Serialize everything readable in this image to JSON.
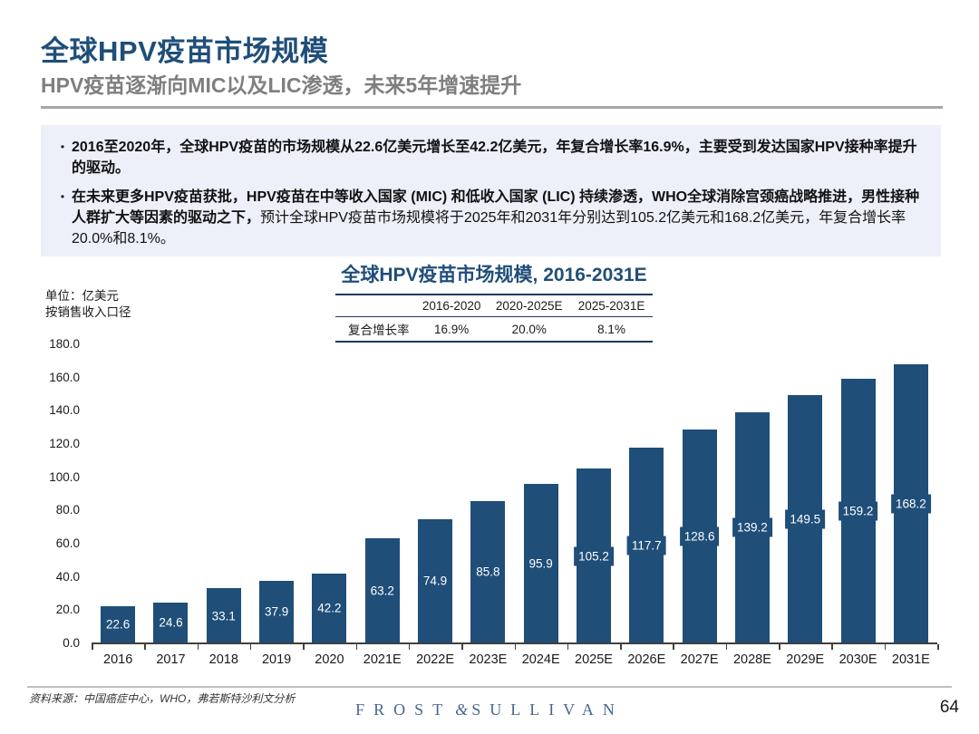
{
  "header": {
    "title": "全球HPV疫苗市场规模",
    "subtitle": "HPV疫苗逐渐向MIC以及LIC渗透，未来5年增速提升"
  },
  "bullets": [
    {
      "lead": "2016至2020年，全球HPV疫苗的市场规模从22.6亿美元增长至42.2亿美元，年复合增长率16.9%，主要受到发达国家HPV接种率提升的驱动。",
      "rest": ""
    },
    {
      "lead": "在未来更多HPV疫苗获批，HPV疫苗在中等收入国家 (MIC) 和低收入国家 (LIC) 持续渗透，WHO全球消除宫颈癌战略推进，男性接种人群扩大等因素的驱动之下，",
      "rest": "预计全球HPV疫苗市场规模将于2025年和2031年分别达到105.2亿美元和168.2亿美元，年复合增长率20.0%和8.1%。"
    }
  ],
  "chart": {
    "unit_line1": "单位：亿美元",
    "unit_line2": "按销售收入口径",
    "cagr_table": {
      "row_label": "复合增长率",
      "columns": [
        "2016-2020",
        "2020-2025E",
        "2025-2031E"
      ],
      "values": [
        "16.9%",
        "20.0%",
        "8.1%"
      ]
    }
  },
  "chart_data": {
    "type": "bar",
    "title": "全球HPV疫苗市场规模, 2016-2031E",
    "categories": [
      "2016",
      "2017",
      "2018",
      "2019",
      "2020",
      "2021E",
      "2022E",
      "2023E",
      "2024E",
      "2025E",
      "2026E",
      "2027E",
      "2028E",
      "2029E",
      "2030E",
      "2031E"
    ],
    "values": [
      22.6,
      24.6,
      33.1,
      37.9,
      42.2,
      63.2,
      74.9,
      85.8,
      95.9,
      105.2,
      117.7,
      128.6,
      139.2,
      149.5,
      159.2,
      168.2
    ],
    "ylabel": "亿美元",
    "ylim": [
      0,
      180
    ],
    "ytick_step": 20,
    "grid": false,
    "legend": false,
    "bar_color": "#1F4E79",
    "value_label_position": "center-inside-bar",
    "value_label_text_color": "#ffffff"
  },
  "footer": {
    "source": "资料来源：中国癌症中心，WHO，弗若斯特沙利文分析",
    "logo_left": "FROST",
    "logo_amp": "&",
    "logo_right": "SULLIVAN",
    "page_number": "64"
  }
}
